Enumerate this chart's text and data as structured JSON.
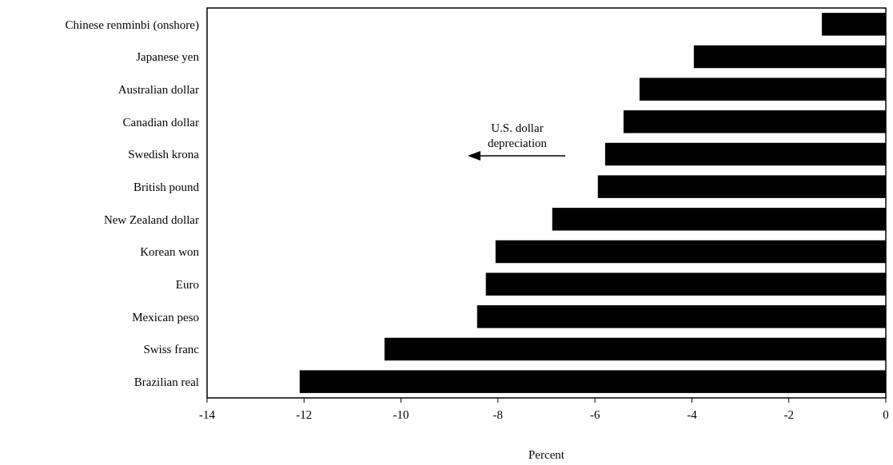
{
  "chart_data": {
    "type": "bar",
    "orientation": "horizontal",
    "xlabel": "Percent",
    "categories": [
      "Chinese renminbi (onshore)",
      "Japanese yen",
      "Australian dollar",
      "Canadian dollar",
      "Swedish krona",
      "British pound",
      "New Zealand dollar",
      "Korean won",
      "Euro",
      "Mexican peso",
      "Swiss franc",
      "Brazilian real"
    ],
    "values": [
      -1.32,
      -3.96,
      -5.08,
      -5.41,
      -5.79,
      -5.94,
      -6.88,
      -8.05,
      -8.25,
      -8.43,
      -10.34,
      -12.09
    ],
    "color": "#000000",
    "xlim": [
      -14,
      0
    ],
    "xticks": [
      -14,
      -12,
      -10,
      -8,
      -6,
      -4,
      -2,
      0
    ],
    "grid": false,
    "annotations": [
      "U.S. dollar\ndepreciation"
    ]
  }
}
